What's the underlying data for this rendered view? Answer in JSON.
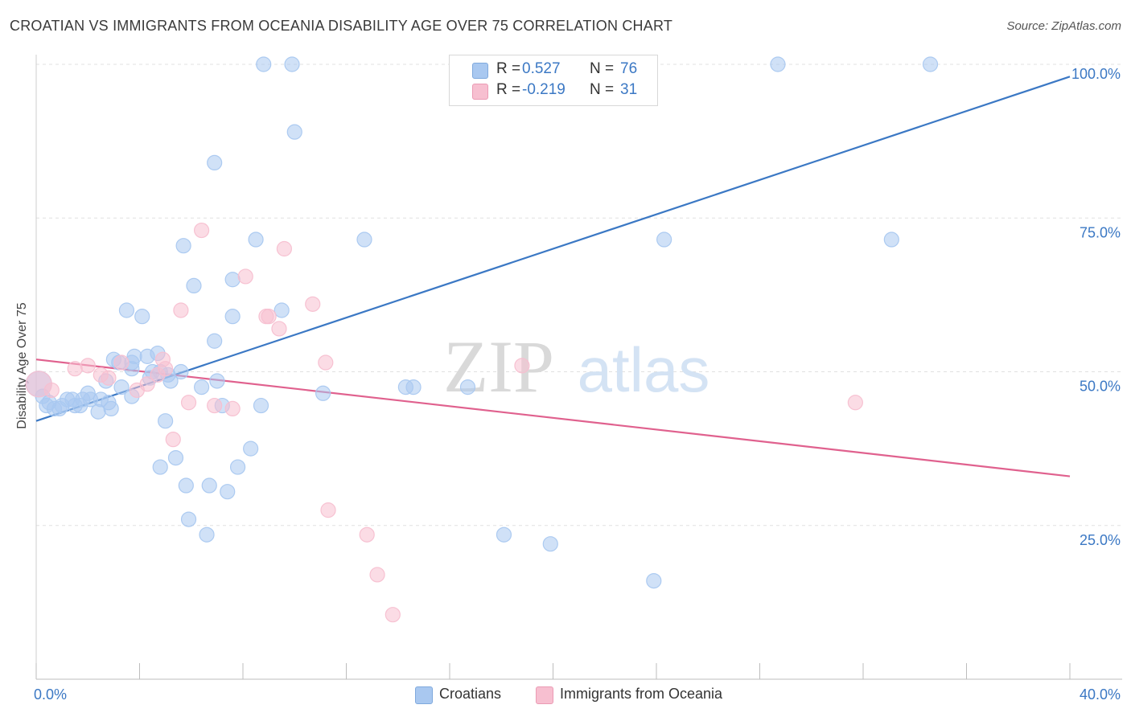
{
  "header": {
    "title": "CROATIAN VS IMMIGRANTS FROM OCEANIA DISABILITY AGE OVER 75 CORRELATION CHART",
    "source": "Source: ZipAtlas.com"
  },
  "watermark": {
    "part1": "ZIP",
    "part2": "atlas"
  },
  "legend": {
    "rows": [
      {
        "r_label": "R =",
        "r_value": "0.527",
        "n_label": "N =",
        "n_value": "76",
        "color": "#a9c8f0"
      },
      {
        "r_label": "R =",
        "r_value": "-0.219",
        "n_label": "N =",
        "n_value": "31",
        "color": "#f7bfd0"
      }
    ]
  },
  "bottom_legend": [
    {
      "label": "Croatians",
      "color": "#a9c8f0"
    },
    {
      "label": "Immigrants from Oceania",
      "color": "#f7bfd0"
    }
  ],
  "chart_data": {
    "type": "scatter",
    "title": "CROATIAN VS IMMIGRANTS FROM OCEANIA DISABILITY AGE OVER 75 CORRELATION CHART",
    "xlabel": "",
    "ylabel": "Disability Age Over 75",
    "xlim": [
      0,
      40
    ],
    "ylim": [
      0,
      100
    ],
    "x_tick_labels": [
      "0.0%",
      "40.0%"
    ],
    "y_tick_labels": [
      "100.0%",
      "75.0%",
      "50.0%",
      "25.0%"
    ],
    "y_ticks": [
      100,
      75,
      50,
      25
    ],
    "grid": true,
    "legend_position": "top-center",
    "series": [
      {
        "name": "Croatians",
        "color": "#3b78c4",
        "fill": "#a9c8f0",
        "trend": [
          [
            0,
            42.0
          ],
          [
            40,
            98.0
          ]
        ],
        "points": [
          [
            0.1,
            48
          ],
          [
            0.25,
            46
          ],
          [
            0.4,
            44.5
          ],
          [
            0.5,
            45
          ],
          [
            0.7,
            44
          ],
          [
            0.9,
            44
          ],
          [
            1.0,
            44.5
          ],
          [
            1.2,
            45.5
          ],
          [
            1.4,
            45.5
          ],
          [
            1.5,
            44.5
          ],
          [
            1.7,
            44.5
          ],
          [
            1.8,
            45.5
          ],
          [
            2.0,
            46.5
          ],
          [
            2.1,
            45.5
          ],
          [
            2.4,
            43.5
          ],
          [
            2.5,
            45.5
          ],
          [
            2.7,
            48.5
          ],
          [
            2.8,
            45
          ],
          [
            2.9,
            44
          ],
          [
            3.0,
            52
          ],
          [
            3.2,
            51.5
          ],
          [
            3.3,
            47.5
          ],
          [
            3.5,
            60
          ],
          [
            3.7,
            50.5
          ],
          [
            3.8,
            52.5
          ],
          [
            4.1,
            59
          ],
          [
            4.3,
            52.5
          ],
          [
            4.4,
            49
          ],
          [
            4.5,
            50
          ],
          [
            4.7,
            53
          ],
          [
            4.8,
            50
          ],
          [
            5.0,
            42
          ],
          [
            5.1,
            49.5
          ],
          [
            5.4,
            36
          ],
          [
            5.6,
            50
          ],
          [
            5.8,
            31.5
          ],
          [
            5.9,
            26
          ],
          [
            6.1,
            64
          ],
          [
            6.4,
            47.5
          ],
          [
            6.6,
            23.5
          ],
          [
            6.7,
            31.5
          ],
          [
            7.0,
            48.5
          ],
          [
            7.2,
            44.5
          ],
          [
            7.4,
            30.5
          ],
          [
            7.6,
            65
          ],
          [
            7.8,
            34.5
          ],
          [
            8.3,
            37.5
          ],
          [
            8.5,
            71.5
          ],
          [
            8.7,
            44.5
          ],
          [
            9.5,
            60
          ],
          [
            10.0,
            89
          ],
          [
            12.7,
            71.5
          ],
          [
            14.3,
            47.5
          ],
          [
            16.7,
            47.5
          ],
          [
            17.0,
            99
          ],
          [
            18.1,
            23.5
          ],
          [
            19.9,
            22
          ],
          [
            20.5,
            96
          ],
          [
            21.4,
            98
          ],
          [
            23.9,
            16
          ],
          [
            24.3,
            71.5
          ],
          [
            28.7,
            100
          ],
          [
            33.1,
            71.5
          ],
          [
            34.6,
            100
          ],
          [
            8.8,
            100
          ],
          [
            9.9,
            100
          ],
          [
            3.7,
            46
          ],
          [
            4.8,
            34.5
          ],
          [
            6.9,
            55
          ],
          [
            7.6,
            59
          ],
          [
            5.7,
            70.5
          ],
          [
            6.9,
            84
          ],
          [
            3.7,
            51.5
          ],
          [
            5.2,
            48.5
          ],
          [
            11.1,
            46.5
          ],
          [
            14.6,
            47.5
          ]
        ]
      },
      {
        "name": "Immigrants from Oceania",
        "color": "#e0618e",
        "fill": "#f7bfd0",
        "trend": [
          [
            0,
            52.0
          ],
          [
            40,
            33.0
          ]
        ],
        "points": [
          [
            0.1,
            48
          ],
          [
            0.6,
            47
          ],
          [
            1.5,
            50.5
          ],
          [
            2.0,
            51
          ],
          [
            2.5,
            49.5
          ],
          [
            2.8,
            49
          ],
          [
            3.3,
            51.5
          ],
          [
            3.9,
            47
          ],
          [
            4.3,
            48
          ],
          [
            4.7,
            49.5
          ],
          [
            5.0,
            50.5
          ],
          [
            5.3,
            39
          ],
          [
            5.6,
            60
          ],
          [
            6.4,
            73
          ],
          [
            6.9,
            44.5
          ],
          [
            7.6,
            44
          ],
          [
            8.1,
            65.5
          ],
          [
            8.9,
            59
          ],
          [
            9.4,
            57
          ],
          [
            9.6,
            70
          ],
          [
            10.7,
            61
          ],
          [
            11.2,
            51.5
          ],
          [
            11.3,
            27.5
          ],
          [
            12.8,
            23.5
          ],
          [
            13.2,
            17
          ],
          [
            13.8,
            10.5
          ],
          [
            18.8,
            51
          ],
          [
            31.7,
            45
          ],
          [
            9.0,
            59
          ],
          [
            5.9,
            45
          ],
          [
            4.9,
            52
          ]
        ]
      }
    ]
  }
}
